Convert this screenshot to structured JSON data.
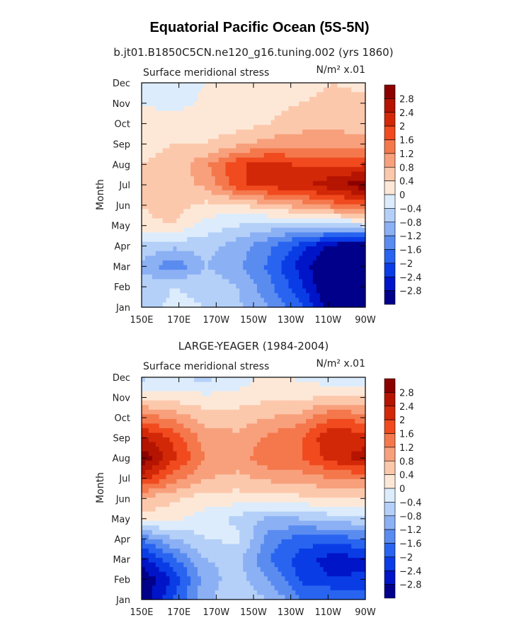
{
  "title": "Equatorial Pacific Ocean (5S-5N)",
  "chart_data": [
    {
      "type": "heatmap",
      "subtitle": "b.jt01.B1850C5CN.ne120_g16.tuning.002 (yrs 1860)",
      "left_label": "Surface meridional stress",
      "right_label": "N/m² x.01",
      "ylabel": "Month",
      "xlabel": "",
      "x_ticks": [
        "150E",
        "170E",
        "170W",
        "150W",
        "130W",
        "110W",
        "90W"
      ],
      "y_ticks": [
        "Jan",
        "Feb",
        "Mar",
        "Apr",
        "May",
        "Jun",
        "Jul",
        "Aug",
        "Sep",
        "Oct",
        "Nov",
        "Dec"
      ],
      "x_labels": [
        "150E",
        "170E",
        "170W",
        "150W",
        "130W",
        "110W",
        "90W"
      ],
      "months": [
        "Jan",
        "Feb",
        "Mar",
        "Apr",
        "May",
        "Jun",
        "Jul",
        "Aug",
        "Sep",
        "Oct",
        "Nov",
        "Dec"
      ],
      "values": [
        [
          -0.6,
          -0.3,
          -0.4,
          -0.7,
          -1.2,
          -1.9,
          -3.2,
          -3.4
        ],
        [
          -0.6,
          -0.4,
          -0.5,
          -0.8,
          -1.5,
          -2.3,
          -3.4,
          -3.6
        ],
        [
          -0.9,
          -1.5,
          -0.8,
          -1.1,
          -1.7,
          -2.6,
          -3.4,
          -3.5
        ],
        [
          -0.5,
          -0.7,
          -0.6,
          -1.0,
          -1.5,
          -2.2,
          -3.0,
          -3.2
        ],
        [
          0.3,
          0.4,
          -0.2,
          -0.4,
          -0.6,
          -0.8,
          -0.6,
          -0.4
        ],
        [
          0.4,
          0.6,
          0.3,
          0.3,
          0.7,
          1.0,
          1.4,
          1.7
        ],
        [
          0.5,
          0.6,
          0.9,
          1.9,
          2.2,
          2.3,
          2.7,
          3.1
        ],
        [
          0.4,
          0.5,
          1.1,
          1.9,
          2.2,
          1.9,
          1.9,
          2.0
        ],
        [
          0.3,
          0.4,
          0.4,
          0.7,
          1.0,
          1.1,
          1.0,
          1.0
        ],
        [
          0.2,
          0.3,
          0.2,
          0.2,
          0.4,
          0.6,
          0.7,
          0.6
        ],
        [
          0.0,
          -0.2,
          0.1,
          0.2,
          0.3,
          0.4,
          0.5,
          0.5
        ],
        [
          -0.1,
          -0.2,
          0.0,
          0.1,
          0.2,
          0.3,
          0.4,
          0.3
        ]
      ],
      "colorbar_labels": [
        "2.8",
        "2.4",
        "2",
        "1.6",
        "1.2",
        "0.8",
        "0.4",
        "0",
        "−0.4",
        "−0.8",
        "−1.2",
        "−1.6",
        "−2",
        "−2.4",
        "−2.8"
      ]
    },
    {
      "type": "heatmap",
      "subtitle": "LARGE-YEAGER (1984-2004)",
      "left_label": "Surface meridional stress",
      "right_label": "N/m² x.01",
      "ylabel": "Month",
      "xlabel": "",
      "x_ticks": [
        "150E",
        "170E",
        "170W",
        "150W",
        "130W",
        "110W",
        "90W"
      ],
      "y_ticks": [
        "Jan",
        "Feb",
        "Mar",
        "Apr",
        "May",
        "Jun",
        "Jul",
        "Aug",
        "Sep",
        "Oct",
        "Nov",
        "Dec"
      ],
      "x_labels": [
        "150E",
        "170E",
        "170W",
        "150W",
        "130W",
        "110W",
        "90W"
      ],
      "months": [
        "Jan",
        "Feb",
        "Mar",
        "Apr",
        "May",
        "Jun",
        "Jul",
        "Aug",
        "Sep",
        "Oct",
        "Nov",
        "Dec"
      ],
      "values": [
        [
          -3.1,
          -2.0,
          -0.9,
          -0.5,
          -0.8,
          -1.6,
          -1.5,
          -1.7
        ],
        [
          -3.2,
          -2.3,
          -1.0,
          -0.6,
          -1.2,
          -2.1,
          -2.4,
          -2.3
        ],
        [
          -2.6,
          -1.7,
          -0.8,
          -0.7,
          -1.6,
          -2.2,
          -2.6,
          -2.5
        ],
        [
          -1.5,
          -0.8,
          -0.4,
          -0.3,
          -1.4,
          -1.8,
          -1.8,
          -1.6
        ],
        [
          0.3,
          0.1,
          -0.2,
          -0.5,
          -0.9,
          -0.8,
          -0.6,
          -0.5
        ],
        [
          0.7,
          0.5,
          0.2,
          0.2,
          0.2,
          0.3,
          0.4,
          0.4
        ],
        [
          2.2,
          1.4,
          0.8,
          0.7,
          0.9,
          1.0,
          1.2,
          1.3
        ],
        [
          3.1,
          2.1,
          1.2,
          1.0,
          1.5,
          1.6,
          2.2,
          2.6
        ],
        [
          2.5,
          1.9,
          1.0,
          0.9,
          1.3,
          1.6,
          2.4,
          2.2
        ],
        [
          1.4,
          1.1,
          0.6,
          0.6,
          0.8,
          1.0,
          1.6,
          1.4
        ],
        [
          0.3,
          0.2,
          0.1,
          0.2,
          0.3,
          0.3,
          0.5,
          0.4
        ],
        [
          -0.5,
          -0.4,
          -0.5,
          -0.3,
          0.2,
          -0.1,
          -0.3,
          -0.4
        ]
      ],
      "colorbar_labels": [
        "2.8",
        "2.4",
        "2",
        "1.6",
        "1.2",
        "0.8",
        "0.4",
        "0",
        "−0.4",
        "−0.8",
        "−1.2",
        "−1.6",
        "−2",
        "−2.4",
        "−2.8"
      ]
    }
  ],
  "levels": [
    -2.8,
    -2.4,
    -2.0,
    -1.6,
    -1.2,
    -0.8,
    -0.4,
    0,
    0.4,
    0.8,
    1.2,
    1.6,
    2.0,
    2.4,
    2.8
  ],
  "colors": [
    "#00008b",
    "#0014c8",
    "#0a3ce6",
    "#2864f0",
    "#5a8cf0",
    "#8cb0f4",
    "#b4d0f8",
    "#dcecfc",
    "#fde8d8",
    "#fcc8ac",
    "#f8a07c",
    "#f4784c",
    "#f04a1e",
    "#d22808",
    "#b41400",
    "#8c0000"
  ]
}
